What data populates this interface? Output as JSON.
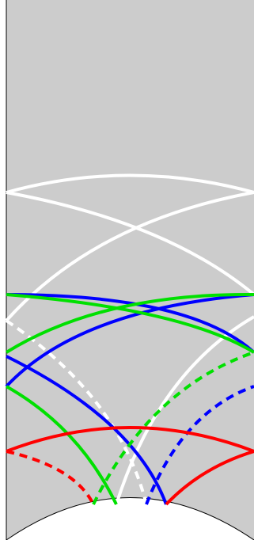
{
  "colors": {
    "background": "#ffffff",
    "region_fill": "#cccccc",
    "boundary": "#000000",
    "white": "#ffffff",
    "blue": "#0000ff",
    "green": "#00e000",
    "red": "#ff0000"
  },
  "arcs": [
    {
      "name": "white-arc-top-horizontal",
      "color": "white",
      "style": "solid"
    },
    {
      "name": "white-arc-upper-left-descending",
      "color": "white",
      "style": "solid"
    },
    {
      "name": "white-arc-upper-right-descending",
      "color": "white",
      "style": "solid"
    },
    {
      "name": "white-arc-left-to-bottom",
      "color": "white",
      "style": "dashed"
    },
    {
      "name": "white-arc-bottom-to-right",
      "color": "white",
      "style": "solid"
    },
    {
      "name": "blue-arc-top-horizontal",
      "color": "blue",
      "style": "solid"
    },
    {
      "name": "blue-arc-left-rising",
      "color": "blue",
      "style": "solid"
    },
    {
      "name": "blue-arc-left-to-bottom",
      "color": "blue",
      "style": "solid"
    },
    {
      "name": "blue-arc-bottom-to-right",
      "color": "blue",
      "style": "dashed"
    },
    {
      "name": "green-arc-top-descending",
      "color": "green",
      "style": "solid"
    },
    {
      "name": "green-arc-left-rising",
      "color": "green",
      "style": "solid"
    },
    {
      "name": "green-arc-left-to-bottom",
      "color": "green",
      "style": "solid"
    },
    {
      "name": "green-arc-bottom-to-right",
      "color": "green",
      "style": "dashed"
    },
    {
      "name": "red-arc-horizontal",
      "color": "red",
      "style": "solid"
    },
    {
      "name": "red-arc-left-to-bottom",
      "color": "red",
      "style": "dashed"
    },
    {
      "name": "red-arc-bottom-to-right",
      "color": "red",
      "style": "solid"
    }
  ]
}
